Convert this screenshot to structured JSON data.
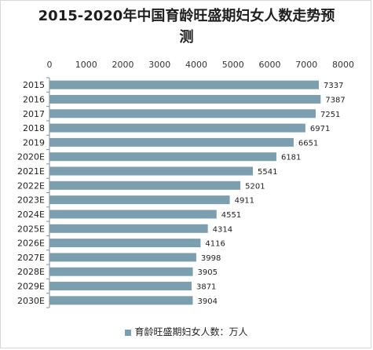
{
  "title_line1": "2015-2020年中国育龄旺盛期妇女人数走势预",
  "title_line2": "测",
  "legend_label": "育龄旺盛期妇女人数：万人",
  "bar_color": "#7b9fae",
  "chart_data": {
    "type": "bar",
    "orientation": "horizontal",
    "title": "2015-2020年中国育龄旺盛期妇女人数走势预测",
    "categories": [
      "2015",
      "2016",
      "2017",
      "2018",
      "2019",
      "2020E",
      "2021E",
      "2022E",
      "2023E",
      "2024E",
      "2025E",
      "2026E",
      "2027E",
      "2028E",
      "2029E",
      "2030E"
    ],
    "series": [
      {
        "name": "育龄旺盛期妇女人数：万人",
        "values": [
          7337,
          7387,
          7251,
          6971,
          6651,
          6181,
          5541,
          5201,
          4911,
          4551,
          4314,
          4116,
          3998,
          3905,
          3871,
          3904
        ]
      }
    ],
    "xlim": [
      0,
      8000
    ],
    "x_ticks": [
      0,
      1000,
      2000,
      3000,
      4000,
      5000,
      6000,
      7000,
      8000
    ],
    "x_axis_position": "top",
    "legend_position": "bottom",
    "grid": false
  }
}
